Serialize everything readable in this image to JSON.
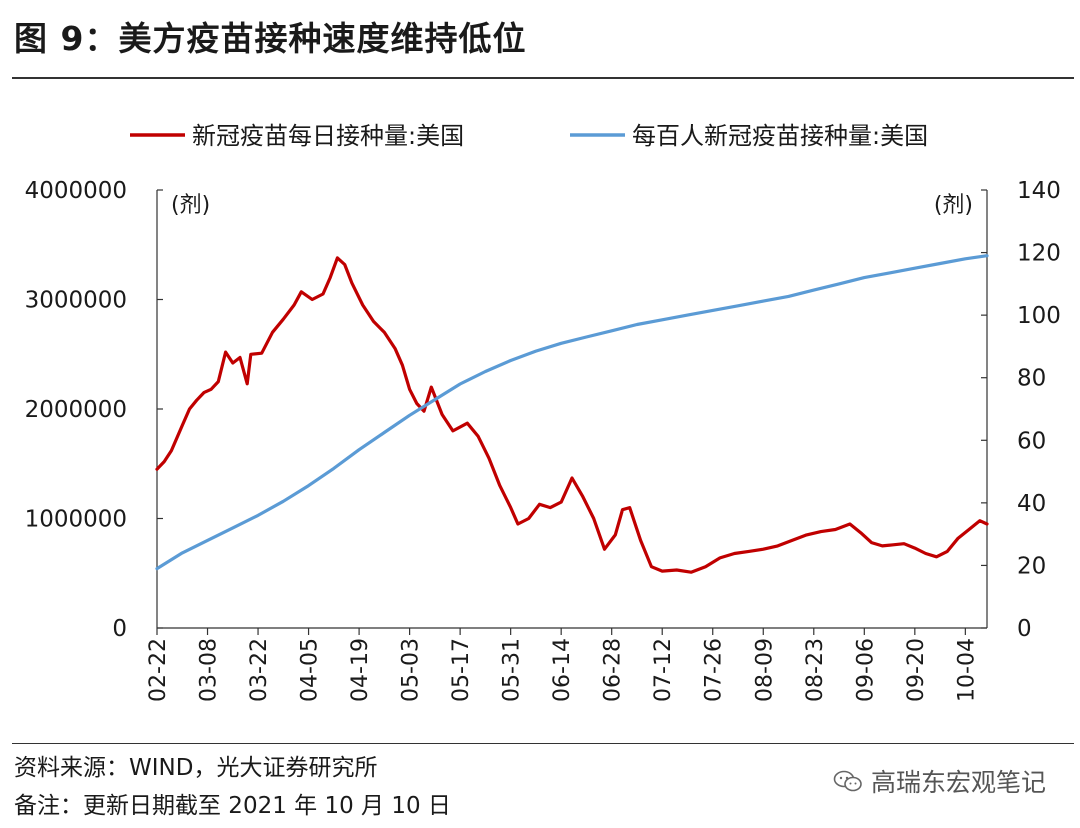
{
  "title": "图 9：美方疫苗接种速度维持低位",
  "source": "资料来源：WIND，光大证券研究所",
  "note": "备注：更新日期截至 2021 年 10 月 10 日",
  "watermark": "高瑞东宏观笔记",
  "colors": {
    "daily": "#c00000",
    "per100": "#5b9bd5"
  },
  "chart_data": {
    "type": "line",
    "x_ticks": [
      "02-22",
      "03-08",
      "03-22",
      "04-05",
      "04-19",
      "05-03",
      "05-17",
      "05-31",
      "06-14",
      "06-28",
      "07-12",
      "07-26",
      "08-09",
      "08-23",
      "09-06",
      "09-20",
      "10-04"
    ],
    "x_start": "02-22",
    "x_end": "10-10",
    "y_left": {
      "unit": "(剂)",
      "lim": [
        0,
        4000000
      ],
      "ticks": [
        0,
        1000000,
        2000000,
        3000000,
        4000000
      ],
      "tick_labels": [
        "0",
        "1000000",
        "2000000",
        "3000000",
        "4000000"
      ]
    },
    "y_right": {
      "unit": "(剂)",
      "lim": [
        0,
        140
      ],
      "ticks": [
        0,
        20,
        40,
        60,
        80,
        100,
        120,
        140
      ],
      "tick_labels": [
        "0",
        "20",
        "40",
        "60",
        "80",
        "100",
        "120",
        "140"
      ]
    },
    "legend_position": "top",
    "series": [
      {
        "name": "新冠疫苗每日接种量:美国",
        "axis": "left",
        "points": [
          [
            "02-22",
            1450000
          ],
          [
            "02-24",
            1520000
          ],
          [
            "02-26",
            1620000
          ],
          [
            "03-01",
            1850000
          ],
          [
            "03-03",
            2000000
          ],
          [
            "03-05",
            2080000
          ],
          [
            "03-07",
            2150000
          ],
          [
            "03-09",
            2180000
          ],
          [
            "03-11",
            2250000
          ],
          [
            "03-13",
            2520000
          ],
          [
            "03-15",
            2420000
          ],
          [
            "03-17",
            2470000
          ],
          [
            "03-19",
            2230000
          ],
          [
            "03-20",
            2500000
          ],
          [
            "03-23",
            2510000
          ],
          [
            "03-26",
            2700000
          ],
          [
            "03-29",
            2820000
          ],
          [
            "04-01",
            2950000
          ],
          [
            "04-03",
            3070000
          ],
          [
            "04-06",
            3000000
          ],
          [
            "04-09",
            3050000
          ],
          [
            "04-11",
            3200000
          ],
          [
            "04-13",
            3380000
          ],
          [
            "04-15",
            3320000
          ],
          [
            "04-17",
            3150000
          ],
          [
            "04-20",
            2950000
          ],
          [
            "04-23",
            2800000
          ],
          [
            "04-26",
            2700000
          ],
          [
            "04-29",
            2550000
          ],
          [
            "05-01",
            2400000
          ],
          [
            "05-03",
            2180000
          ],
          [
            "05-05",
            2050000
          ],
          [
            "05-07",
            1980000
          ],
          [
            "05-09",
            2200000
          ],
          [
            "05-12",
            1950000
          ],
          [
            "05-15",
            1800000
          ],
          [
            "05-19",
            1870000
          ],
          [
            "05-22",
            1750000
          ],
          [
            "05-25",
            1550000
          ],
          [
            "05-28",
            1300000
          ],
          [
            "05-31",
            1100000
          ],
          [
            "06-02",
            950000
          ],
          [
            "06-05",
            1000000
          ],
          [
            "06-08",
            1130000
          ],
          [
            "06-11",
            1100000
          ],
          [
            "06-14",
            1150000
          ],
          [
            "06-17",
            1370000
          ],
          [
            "06-20",
            1200000
          ],
          [
            "06-23",
            1000000
          ],
          [
            "06-26",
            720000
          ],
          [
            "06-29",
            850000
          ],
          [
            "07-01",
            1080000
          ],
          [
            "07-03",
            1100000
          ],
          [
            "07-06",
            800000
          ],
          [
            "07-09",
            560000
          ],
          [
            "07-12",
            520000
          ],
          [
            "07-16",
            530000
          ],
          [
            "07-20",
            510000
          ],
          [
            "07-24",
            560000
          ],
          [
            "07-28",
            640000
          ],
          [
            "08-01",
            680000
          ],
          [
            "08-05",
            700000
          ],
          [
            "08-09",
            720000
          ],
          [
            "08-13",
            750000
          ],
          [
            "08-17",
            800000
          ],
          [
            "08-21",
            850000
          ],
          [
            "08-25",
            880000
          ],
          [
            "08-29",
            900000
          ],
          [
            "09-02",
            950000
          ],
          [
            "09-05",
            870000
          ],
          [
            "09-08",
            780000
          ],
          [
            "09-11",
            750000
          ],
          [
            "09-14",
            760000
          ],
          [
            "09-17",
            770000
          ],
          [
            "09-20",
            730000
          ],
          [
            "09-23",
            680000
          ],
          [
            "09-26",
            650000
          ],
          [
            "09-29",
            700000
          ],
          [
            "10-02",
            820000
          ],
          [
            "10-05",
            900000
          ],
          [
            "10-08",
            980000
          ],
          [
            "10-10",
            950000
          ]
        ]
      },
      {
        "name": "每百人新冠疫苗接种量:美国",
        "axis": "right",
        "points": [
          [
            "02-22",
            19
          ],
          [
            "03-01",
            24
          ],
          [
            "03-08",
            28
          ],
          [
            "03-15",
            32
          ],
          [
            "03-22",
            36
          ],
          [
            "03-29",
            40.5
          ],
          [
            "04-05",
            45.5
          ],
          [
            "04-12",
            51
          ],
          [
            "04-19",
            57
          ],
          [
            "04-26",
            62.5
          ],
          [
            "05-03",
            68
          ],
          [
            "05-10",
            73
          ],
          [
            "05-17",
            78
          ],
          [
            "05-24",
            82
          ],
          [
            "05-31",
            85.5
          ],
          [
            "06-07",
            88.5
          ],
          [
            "06-14",
            91
          ],
          [
            "06-21",
            93
          ],
          [
            "06-28",
            95
          ],
          [
            "07-05",
            97
          ],
          [
            "07-12",
            98.5
          ],
          [
            "07-19",
            100
          ],
          [
            "07-26",
            101.5
          ],
          [
            "08-02",
            103
          ],
          [
            "08-09",
            104.5
          ],
          [
            "08-16",
            106
          ],
          [
            "08-23",
            108
          ],
          [
            "08-30",
            110
          ],
          [
            "09-06",
            112
          ],
          [
            "09-13",
            113.5
          ],
          [
            "09-20",
            115
          ],
          [
            "09-27",
            116.5
          ],
          [
            "10-04",
            118
          ],
          [
            "10-10",
            119
          ]
        ]
      }
    ]
  }
}
